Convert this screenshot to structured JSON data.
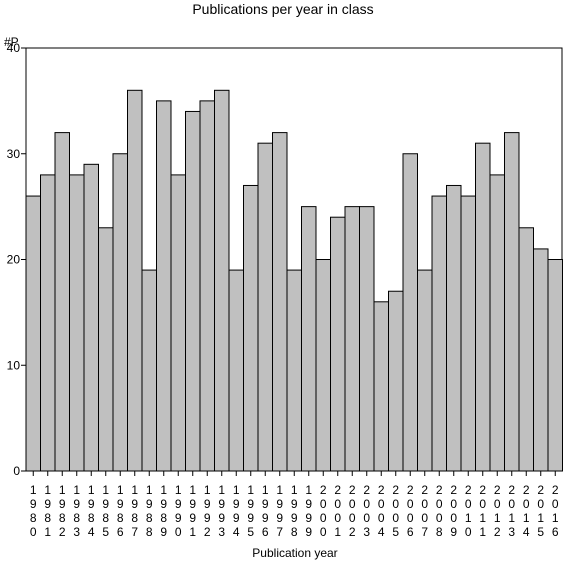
{
  "chart_data": {
    "type": "bar",
    "title": "Publications per year in class",
    "ylabel": "#P",
    "xlabel": "Publication year",
    "ylim": [
      0,
      40
    ],
    "yticks": [
      0,
      10,
      20,
      30,
      40
    ],
    "grid": false,
    "categories": [
      "1980",
      "1981",
      "1982",
      "1983",
      "1984",
      "1985",
      "1986",
      "1987",
      "1988",
      "1989",
      "1990",
      "1991",
      "1992",
      "1993",
      "1994",
      "1995",
      "1996",
      "1997",
      "1998",
      "1999",
      "2000",
      "2001",
      "2002",
      "2003",
      "2004",
      "2005",
      "2006",
      "2007",
      "2008",
      "2009",
      "2010",
      "2011",
      "2012",
      "2013",
      "2014",
      "2015",
      "2016"
    ],
    "values": [
      26,
      28,
      32,
      28,
      29,
      23,
      30,
      36,
      19,
      35,
      28,
      34,
      35,
      36,
      19,
      27,
      31,
      32,
      19,
      25,
      20,
      24,
      25,
      25,
      16,
      17,
      30,
      19,
      26,
      27,
      26,
      31,
      28,
      32,
      23,
      21,
      20
    ],
    "colors": {
      "bar_fill": "#c0c0c0",
      "bar_stroke": "#000000",
      "axis": "#000000"
    }
  }
}
